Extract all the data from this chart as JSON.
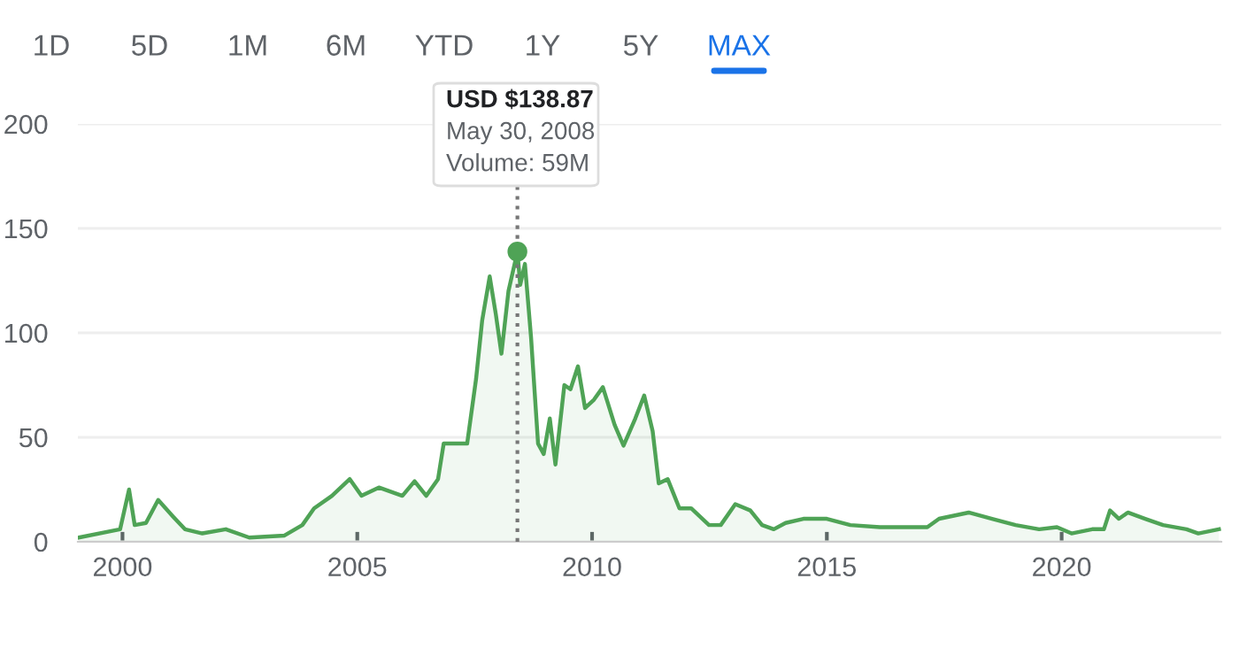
{
  "chart_data": {
    "type": "area",
    "series": [
      {
        "color": "#4fa356",
        "x": [
          1999.07,
          1999.95,
          2000.14,
          2000.26,
          2000.5,
          2000.76,
          2001.08,
          2001.33,
          2001.7,
          2002.2,
          2002.7,
          2003.45,
          2003.83,
          2004.08,
          2004.46,
          2004.84,
          2005.09,
          2005.46,
          2005.96,
          2006.22,
          2006.47,
          2006.72,
          2006.84,
          2007.34,
          2007.53,
          2007.66,
          2007.82,
          2007.95,
          2008.07,
          2008.22,
          2008.41,
          2008.47,
          2008.57,
          2008.7,
          2008.85,
          2008.97,
          2009.1,
          2009.22,
          2009.41,
          2009.54,
          2009.7,
          2009.85,
          2010.04,
          2010.23,
          2010.48,
          2010.67,
          2010.92,
          2011.11,
          2011.29,
          2011.42,
          2011.61,
          2011.86,
          2012.11,
          2012.49,
          2012.74,
          2013.05,
          2013.37,
          2013.62,
          2013.87,
          2014.12,
          2014.5,
          2015.0,
          2015.5,
          2016.13,
          2016.76,
          2017.14,
          2017.39,
          2018.02,
          2018.52,
          2019.02,
          2019.52,
          2019.9,
          2020.21,
          2020.65,
          2020.9,
          2021.03,
          2021.22,
          2021.41,
          2021.78,
          2022.16,
          2022.66,
          2022.91,
          2023.35
        ],
        "values": [
          2,
          6,
          25,
          8,
          9,
          20,
          12,
          6,
          4,
          6,
          2,
          3,
          8,
          16,
          22,
          30,
          22,
          26,
          22,
          29,
          22,
          30,
          47,
          47,
          78,
          106,
          127,
          109,
          90,
          120,
          138.87,
          123,
          133,
          98,
          47,
          42,
          59,
          37,
          75,
          73,
          84,
          64,
          68,
          74,
          56,
          46,
          59,
          70,
          53,
          28,
          30,
          16,
          16,
          8,
          8,
          18,
          15,
          8,
          6,
          9,
          11,
          11,
          8,
          7,
          7,
          7,
          11,
          14,
          11,
          8,
          6,
          7,
          4,
          6,
          6,
          15,
          11,
          14,
          11,
          8,
          6,
          4,
          6
        ]
      },
      {
        "type": "scatter",
        "color": "#4fa356",
        "x": [
          2008.41
        ],
        "values": [
          138.87
        ]
      }
    ],
    "xlim": [
      1999.05,
      2023.4
    ],
    "xticks": [
      2000,
      2005,
      2010,
      2015,
      2020
    ],
    "ylim": [
      0,
      200
    ],
    "yticks": [
      0,
      50,
      100,
      150,
      200
    ],
    "grid": "y",
    "ref_lines": [
      {
        "axis": "x",
        "value": 2008.41,
        "color": "#777777",
        "line_style": "dotted"
      }
    ],
    "annotations": [
      "1D",
      "5D",
      "1M",
      "6M",
      "YTD",
      "1Y",
      "5Y",
      "MAX",
      "USD $138.87",
      "May 30, 2008",
      "Volume: 59M"
    ]
  }
}
